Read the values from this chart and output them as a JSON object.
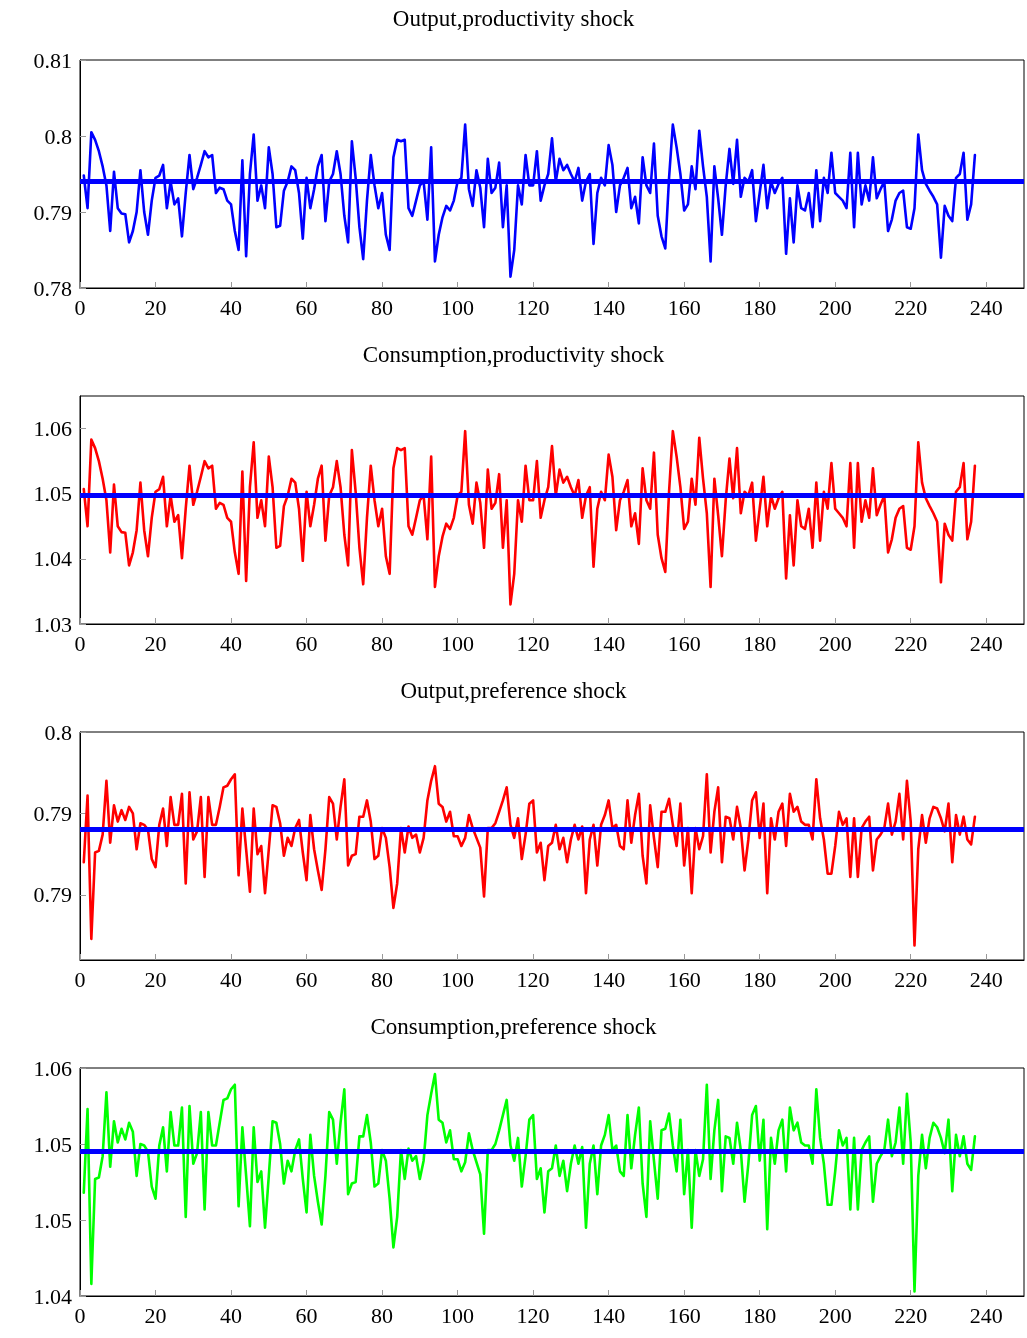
{
  "chart_data": [
    {
      "type": "line",
      "title": "Output,productivity shock",
      "marker": "none",
      "line_style": "solid",
      "x": [
        1,
        2,
        3,
        4,
        5,
        6,
        7,
        8,
        9,
        10,
        11,
        12,
        13,
        14,
        15,
        16,
        17,
        18,
        19,
        20,
        21,
        22,
        23,
        24,
        25,
        26,
        27,
        28,
        29,
        30,
        31,
        32,
        33,
        34,
        35,
        36,
        37,
        38,
        39,
        40,
        41,
        42,
        43,
        44,
        45,
        46,
        47,
        48,
        49,
        50,
        51,
        52,
        53,
        54,
        55,
        56,
        57,
        58,
        59,
        60,
        61,
        62,
        63,
        64,
        65,
        66,
        67,
        68,
        69,
        70,
        71,
        72,
        73,
        74,
        75,
        76,
        77,
        78,
        79,
        80,
        81,
        82,
        83,
        84,
        85,
        86,
        87,
        88,
        89,
        90,
        91,
        92,
        93,
        94,
        95,
        96,
        97,
        98,
        99,
        100,
        101,
        102,
        103,
        104,
        105,
        106,
        107,
        108,
        109,
        110,
        111,
        112,
        113,
        114,
        115,
        116,
        117,
        118,
        119,
        120,
        121,
        122,
        123,
        124,
        125,
        126,
        127,
        128,
        129,
        130,
        131,
        132,
        133,
        134,
        135,
        136,
        137,
        138,
        139,
        140,
        141,
        142,
        143,
        144,
        145,
        146,
        147,
        148,
        149,
        150,
        151,
        152,
        153,
        154,
        155,
        156,
        157,
        158,
        159,
        160,
        161,
        162,
        163,
        164,
        165,
        166,
        167,
        168,
        169,
        170,
        171,
        172,
        173,
        174,
        175,
        176,
        177,
        178,
        179,
        180,
        181,
        182,
        183,
        184,
        185,
        186,
        187,
        188,
        189,
        190,
        191,
        192,
        193,
        194,
        195,
        196,
        197,
        198,
        199,
        200,
        201,
        202,
        203,
        204,
        205,
        206,
        207,
        208,
        209,
        210,
        211,
        212,
        213,
        214,
        215,
        216,
        217,
        218,
        219,
        220,
        221,
        222,
        223,
        224,
        225,
        226,
        227,
        228,
        229,
        230,
        231,
        232,
        233,
        234,
        235,
        236,
        237
      ],
      "series": [
        {
          "color": "#0000ff",
          "values": [
            0.7948,
            0.7905,
            0.8005,
            0.7995,
            0.798,
            0.796,
            0.7935,
            0.7875,
            0.7953,
            0.7905,
            0.7898,
            0.7897,
            0.786,
            0.7875,
            0.79,
            0.7955,
            0.79,
            0.787,
            0.7915,
            0.7945,
            0.7948,
            0.7962,
            0.7905,
            0.794,
            0.791,
            0.7918,
            0.7868,
            0.7925,
            0.7975,
            0.793,
            0.7945,
            0.7962,
            0.798,
            0.7972,
            0.7975,
            0.7925,
            0.7932,
            0.793,
            0.7915,
            0.791,
            0.7875,
            0.785,
            0.7968,
            0.7842,
            0.795,
            0.8002,
            0.7915,
            0.7935,
            0.7905,
            0.7985,
            0.795,
            0.788,
            0.7882,
            0.7928,
            0.794,
            0.796,
            0.7955,
            0.7925,
            0.7865,
            0.7945,
            0.7905,
            0.793,
            0.796,
            0.7975,
            0.7888,
            0.794,
            0.795,
            0.798,
            0.795,
            0.7895,
            0.786,
            0.7993,
            0.7945,
            0.788,
            0.7838,
            0.7915,
            0.7975,
            0.7935,
            0.7905,
            0.7925,
            0.787,
            0.785,
            0.7972,
            0.7995,
            0.7993,
            0.7995,
            0.7905,
            0.7895,
            0.7915,
            0.7935,
            0.794,
            0.789,
            0.7985,
            0.7835,
            0.787,
            0.7893,
            0.7908,
            0.7902,
            0.7915,
            0.794,
            0.7945,
            0.8015,
            0.793,
            0.7908,
            0.7955,
            0.7932,
            0.788,
            0.797,
            0.7925,
            0.7932,
            0.7965,
            0.788,
            0.7935,
            0.7815,
            0.785,
            0.7935,
            0.791,
            0.7975,
            0.7935,
            0.7935,
            0.798,
            0.7915,
            0.7935,
            0.795,
            0.7997,
            0.794,
            0.797,
            0.7955,
            0.7962,
            0.795,
            0.794,
            0.7958,
            0.7915,
            0.794,
            0.795,
            0.7858,
            0.7925,
            0.7945,
            0.7935,
            0.7988,
            0.7962,
            0.79,
            0.7935,
            0.7945,
            0.7958,
            0.7905,
            0.792,
            0.7885,
            0.7972,
            0.7935,
            0.7925,
            0.799,
            0.7895,
            0.7868,
            0.7852,
            0.7945,
            0.8015,
            0.7985,
            0.795,
            0.7902,
            0.791,
            0.796,
            0.793,
            0.8007,
            0.796,
            0.792,
            0.7835,
            0.796,
            0.7918,
            0.787,
            0.7935,
            0.7983,
            0.7937,
            0.7995,
            0.792,
            0.7945,
            0.794,
            0.7955,
            0.7888,
            0.7925,
            0.7962,
            0.7905,
            0.794,
            0.7925,
            0.7937,
            0.7945,
            0.7845,
            0.7918,
            0.786,
            0.7935,
            0.7905,
            0.7902,
            0.7925,
            0.788,
            0.7955,
            0.7888,
            0.7945,
            0.7925,
            0.7978,
            0.7925,
            0.792,
            0.7915,
            0.7905,
            0.7978,
            0.788,
            0.7978,
            0.791,
            0.7935,
            0.7915,
            0.7972,
            0.7918,
            0.793,
            0.794,
            0.7875,
            0.789,
            0.7915,
            0.7925,
            0.7928,
            0.788,
            0.7878,
            0.7905,
            0.8002,
            0.7955,
            0.7937,
            0.7928,
            0.792,
            0.791,
            0.784,
            0.7908,
            0.7895,
            0.7888,
            0.7945,
            0.795,
            0.7978,
            0.789,
            0.791,
            0.7975
          ]
        }
      ],
      "ref_lines": [
        {
          "axis": "y",
          "value": 0.7941,
          "color": "#0000ff"
        }
      ],
      "xlim": [
        0,
        250
      ],
      "xticks": [
        0,
        20,
        40,
        60,
        80,
        100,
        120,
        140,
        160,
        180,
        200,
        220,
        240
      ],
      "ylim": [
        0.78,
        0.81
      ],
      "yticks": [
        0.78,
        0.79,
        0.8,
        0.81
      ]
    },
    {
      "type": "line",
      "title": "Consumption,productivity shock",
      "marker": "none",
      "line_style": "solid",
      "x": [
        1,
        2,
        3,
        4,
        5,
        6,
        7,
        8,
        9,
        10,
        11,
        12,
        13,
        14,
        15,
        16,
        17,
        18,
        19,
        20,
        21,
        22,
        23,
        24,
        25,
        26,
        27,
        28,
        29,
        30,
        31,
        32,
        33,
        34,
        35,
        36,
        37,
        38,
        39,
        40,
        41,
        42,
        43,
        44,
        45,
        46,
        47,
        48,
        49,
        50,
        51,
        52,
        53,
        54,
        55,
        56,
        57,
        58,
        59,
        60,
        61,
        62,
        63,
        64,
        65,
        66,
        67,
        68,
        69,
        70,
        71,
        72,
        73,
        74,
        75,
        76,
        77,
        78,
        79,
        80,
        81,
        82,
        83,
        84,
        85,
        86,
        87,
        88,
        89,
        90,
        91,
        92,
        93,
        94,
        95,
        96,
        97,
        98,
        99,
        100,
        101,
        102,
        103,
        104,
        105,
        106,
        107,
        108,
        109,
        110,
        111,
        112,
        113,
        114,
        115,
        116,
        117,
        118,
        119,
        120,
        121,
        122,
        123,
        124,
        125,
        126,
        127,
        128,
        129,
        130,
        131,
        132,
        133,
        134,
        135,
        136,
        137,
        138,
        139,
        140,
        141,
        142,
        143,
        144,
        145,
        146,
        147,
        148,
        149,
        150,
        151,
        152,
        153,
        154,
        155,
        156,
        157,
        158,
        159,
        160,
        161,
        162,
        163,
        164,
        165,
        166,
        167,
        168,
        169,
        170,
        171,
        172,
        173,
        174,
        175,
        176,
        177,
        178,
        179,
        180,
        181,
        182,
        183,
        184,
        185,
        186,
        187,
        188,
        189,
        190,
        191,
        192,
        193,
        194,
        195,
        196,
        197,
        198,
        199,
        200,
        201,
        202,
        203,
        204,
        205,
        206,
        207,
        208,
        209,
        210,
        211,
        212,
        213,
        214,
        215,
        216,
        217,
        218,
        219,
        220,
        221,
        222,
        223,
        224,
        225,
        226,
        227,
        228,
        229,
        230,
        231,
        232,
        233,
        234,
        235,
        236,
        237
      ],
      "series": [
        {
          "color": "#ff0000",
          "values": [
            1.0507,
            1.045,
            1.0583,
            1.057,
            1.055,
            1.0523,
            1.049,
            1.041,
            1.0514,
            1.045,
            1.0441,
            1.044,
            1.039,
            1.041,
            1.0444,
            1.0517,
            1.0444,
            1.0404,
            1.0463,
            1.0503,
            1.0507,
            1.0526,
            1.045,
            1.0497,
            1.0457,
            1.0467,
            1.0401,
            1.0477,
            1.0543,
            1.0483,
            1.0503,
            1.0526,
            1.055,
            1.0539,
            1.0543,
            1.0477,
            1.0486,
            1.0483,
            1.0463,
            1.0457,
            1.041,
            1.0377,
            1.0534,
            1.0366,
            1.051,
            1.0579,
            1.0463,
            1.049,
            1.045,
            1.0557,
            1.051,
            1.0417,
            1.042,
            1.0481,
            1.0497,
            1.0523,
            1.0517,
            1.0477,
            1.0397,
            1.0503,
            1.045,
            1.0483,
            1.0523,
            1.0543,
            1.0428,
            1.0497,
            1.051,
            1.055,
            1.051,
            1.0437,
            1.039,
            1.0567,
            1.0503,
            1.0417,
            1.0361,
            1.0463,
            1.0543,
            1.049,
            1.045,
            1.0477,
            1.0404,
            1.0377,
            1.0539,
            1.057,
            1.0567,
            1.057,
            1.045,
            1.0437,
            1.0463,
            1.049,
            1.0497,
            1.043,
            1.0557,
            1.0357,
            1.0404,
            1.0434,
            1.0454,
            1.0446,
            1.0463,
            1.0497,
            1.0503,
            1.0596,
            1.0483,
            1.0454,
            1.0517,
            1.0486,
            1.0417,
            1.0537,
            1.0477,
            1.0486,
            1.053,
            1.0417,
            1.049,
            1.033,
            1.0377,
            1.049,
            1.0457,
            1.0543,
            1.049,
            1.049,
            1.055,
            1.0463,
            1.049,
            1.051,
            1.0573,
            1.0497,
            1.0537,
            1.0517,
            1.0526,
            1.051,
            1.0497,
            1.0521,
            1.0463,
            1.0497,
            1.051,
            1.0388,
            1.0477,
            1.0503,
            1.049,
            1.056,
            1.0526,
            1.0444,
            1.049,
            1.0503,
            1.0521,
            1.045,
            1.047,
            1.0423,
            1.0539,
            1.049,
            1.0477,
            1.0563,
            1.0437,
            1.0401,
            1.038,
            1.0503,
            1.0596,
            1.0557,
            1.051,
            1.0446,
            1.0457,
            1.0523,
            1.0483,
            1.0586,
            1.0523,
            1.047,
            1.0357,
            1.0523,
            1.0467,
            1.0404,
            1.049,
            1.0554,
            1.0493,
            1.057,
            1.047,
            1.0503,
            1.0497,
            1.0517,
            1.0428,
            1.0477,
            1.0526,
            1.045,
            1.0497,
            1.0477,
            1.0493,
            1.0503,
            1.037,
            1.0467,
            1.039,
            1.049,
            1.045,
            1.0446,
            1.0477,
            1.0417,
            1.0517,
            1.0428,
            1.0503,
            1.0477,
            1.0547,
            1.0477,
            1.047,
            1.0463,
            1.045,
            1.0547,
            1.0417,
            1.0547,
            1.0457,
            1.049,
            1.0463,
            1.0539,
            1.0467,
            1.0483,
            1.0497,
            1.041,
            1.043,
            1.0463,
            1.0477,
            1.0481,
            1.0417,
            1.0414,
            1.045,
            1.0579,
            1.0517,
            1.0493,
            1.0481,
            1.047,
            1.0457,
            1.0364,
            1.0454,
            1.0437,
            1.0428,
            1.0503,
            1.051,
            1.0547,
            1.043,
            1.0457,
            1.0543
          ]
        }
      ],
      "ref_lines": [
        {
          "axis": "y",
          "value": 1.0498,
          "color": "#0000ff"
        }
      ],
      "xlim": [
        0,
        250
      ],
      "xticks": [
        0,
        20,
        40,
        60,
        80,
        100,
        120,
        140,
        160,
        180,
        200,
        220,
        240
      ],
      "ylim": [
        1.03,
        1.065
      ],
      "yticks": [
        1.03,
        1.04,
        1.05,
        1.06
      ]
    },
    {
      "type": "line",
      "title": "Output,preference shock",
      "marker": "none",
      "line_style": "solid",
      "x": [
        1,
        2,
        3,
        4,
        5,
        6,
        7,
        8,
        9,
        10,
        11,
        12,
        13,
        14,
        15,
        16,
        17,
        18,
        19,
        20,
        21,
        22,
        23,
        24,
        25,
        26,
        27,
        28,
        29,
        30,
        31,
        32,
        33,
        34,
        35,
        36,
        37,
        38,
        39,
        40,
        41,
        42,
        43,
        44,
        45,
        46,
        47,
        48,
        49,
        50,
        51,
        52,
        53,
        54,
        55,
        56,
        57,
        58,
        59,
        60,
        61,
        62,
        63,
        64,
        65,
        66,
        67,
        68,
        69,
        70,
        71,
        72,
        73,
        74,
        75,
        76,
        77,
        78,
        79,
        80,
        81,
        82,
        83,
        84,
        85,
        86,
        87,
        88,
        89,
        90,
        91,
        92,
        93,
        94,
        95,
        96,
        97,
        98,
        99,
        100,
        101,
        102,
        103,
        104,
        105,
        106,
        107,
        108,
        109,
        110,
        111,
        112,
        113,
        114,
        115,
        116,
        117,
        118,
        119,
        120,
        121,
        122,
        123,
        124,
        125,
        126,
        127,
        128,
        129,
        130,
        131,
        132,
        133,
        134,
        135,
        136,
        137,
        138,
        139,
        140,
        141,
        142,
        143,
        144,
        145,
        146,
        147,
        148,
        149,
        150,
        151,
        152,
        153,
        154,
        155,
        156,
        157,
        158,
        159,
        160,
        161,
        162,
        163,
        164,
        165,
        166,
        167,
        168,
        169,
        170,
        171,
        172,
        173,
        174,
        175,
        176,
        177,
        178,
        179,
        180,
        181,
        182,
        183,
        184,
        185,
        186,
        187,
        188,
        189,
        190,
        191,
        192,
        193,
        194,
        195,
        196,
        197,
        198,
        199,
        200,
        201,
        202,
        203,
        204,
        205,
        206,
        207,
        208,
        209,
        210,
        211,
        212,
        213,
        214,
        215,
        216,
        217,
        218,
        219,
        220,
        221,
        222,
        223,
        224,
        225,
        226,
        227,
        228,
        229,
        230,
        231,
        232,
        233,
        234,
        235,
        236,
        237
      ],
      "series": [
        {
          "color": "#ff0000",
          "values": [
            0.792,
            0.7961,
            0.7873,
            0.7926,
            0.7927,
            0.7937,
            0.797,
            0.7932,
            0.7955,
            0.7945,
            0.7952,
            0.7946,
            0.7954,
            0.795,
            0.7928,
            0.7944,
            0.7943,
            0.794,
            0.7922,
            0.7917,
            0.7943,
            0.7953,
            0.793,
            0.796,
            0.7943,
            0.7943,
            0.7962,
            0.7907,
            0.7963,
            0.7934,
            0.7939,
            0.796,
            0.7911,
            0.796,
            0.7943,
            0.7943,
            0.7954,
            0.7966,
            0.7967,
            0.7971,
            0.7974,
            0.7912,
            0.7953,
            0.7928,
            0.7902,
            0.7953,
            0.7925,
            0.793,
            0.7901,
            0.7928,
            0.7955,
            0.7954,
            0.7944,
            0.7924,
            0.7935,
            0.793,
            0.7941,
            0.7946,
            0.7926,
            0.7909,
            0.7949,
            0.7928,
            0.7915,
            0.7903,
            0.7928,
            0.796,
            0.7956,
            0.7934,
            0.7954,
            0.7971,
            0.7918,
            0.7924,
            0.7925,
            0.7948,
            0.7948,
            0.7958,
            0.7945,
            0.7922,
            0.7924,
            0.7941,
            0.7935,
            0.7917,
            0.7892,
            0.7907,
            0.7941,
            0.7926,
            0.7942,
            0.7935,
            0.7937,
            0.7926,
            0.7935,
            0.7958,
            0.797,
            0.7979,
            0.7956,
            0.7954,
            0.7945,
            0.7951,
            0.7936,
            0.7936,
            0.793,
            0.7935,
            0.7949,
            0.7941,
            0.7935,
            0.7929,
            0.7899,
            0.7941,
            0.7941,
            0.7944,
            0.7951,
            0.7958,
            0.7966,
            0.7943,
            0.7935,
            0.7947,
            0.7922,
            0.7937,
            0.7956,
            0.7958,
            0.7926,
            0.7932,
            0.7909,
            0.793,
            0.7932,
            0.7943,
            0.7928,
            0.7935,
            0.792,
            0.7934,
            0.7943,
            0.7934,
            0.7942,
            0.7901,
            0.7934,
            0.7943,
            0.7918,
            0.7943,
            0.7949,
            0.7958,
            0.7941,
            0.7943,
            0.793,
            0.7928,
            0.7958,
            0.7932,
            0.7949,
            0.7962,
            0.7924,
            0.7907,
            0.7955,
            0.7935,
            0.7917,
            0.7951,
            0.7951,
            0.7959,
            0.7943,
            0.793,
            0.7956,
            0.7918,
            0.7941,
            0.7901,
            0.7941,
            0.7928,
            0.7936,
            0.7974,
            0.7926,
            0.7951,
            0.7966,
            0.792,
            0.7948,
            0.7947,
            0.7934,
            0.7954,
            0.7941,
            0.7915,
            0.7934,
            0.7958,
            0.7963,
            0.7935,
            0.7956,
            0.7901,
            0.7947,
            0.7934,
            0.7951,
            0.7956,
            0.793,
            0.7962,
            0.7951,
            0.7954,
            0.7945,
            0.7943,
            0.7943,
            0.7934,
            0.7971,
            0.7947,
            0.7934,
            0.7913,
            0.7913,
            0.793,
            0.7951,
            0.7943,
            0.7947,
            0.7911,
            0.7947,
            0.7911,
            0.7941,
            0.7945,
            0.7948,
            0.7915,
            0.7934,
            0.7937,
            0.7941,
            0.7956,
            0.7937,
            0.7945,
            0.7962,
            0.7934,
            0.797,
            0.7945,
            0.7869,
            0.7928,
            0.7949,
            0.7932,
            0.7947,
            0.7954,
            0.7953,
            0.7947,
            0.7939,
            0.7956,
            0.792,
            0.7949,
            0.7937,
            0.7948,
            0.7934,
            0.7931,
            0.7948
          ]
        }
      ],
      "ref_lines": [
        {
          "axis": "y",
          "value": 0.794,
          "color": "#0000ff"
        }
      ],
      "xlim": [
        0,
        250
      ],
      "xticks": [
        0,
        20,
        40,
        60,
        80,
        100,
        120,
        140,
        160,
        180,
        200,
        220,
        240
      ],
      "ylim": [
        0.786,
        0.8
      ],
      "yticks": [
        {
          "value": 0.79,
          "label": "0.79"
        },
        {
          "value": 0.795,
          "label": "0.79"
        },
        {
          "value": 0.8,
          "label": "0.8"
        }
      ]
    },
    {
      "type": "line",
      "title": "Consumption,preference shock",
      "marker": "none",
      "line_style": "solid",
      "x": [
        1,
        2,
        3,
        4,
        5,
        6,
        7,
        8,
        9,
        10,
        11,
        12,
        13,
        14,
        15,
        16,
        17,
        18,
        19,
        20,
        21,
        22,
        23,
        24,
        25,
        26,
        27,
        28,
        29,
        30,
        31,
        32,
        33,
        34,
        35,
        36,
        37,
        38,
        39,
        40,
        41,
        42,
        43,
        44,
        45,
        46,
        47,
        48,
        49,
        50,
        51,
        52,
        53,
        54,
        55,
        56,
        57,
        58,
        59,
        60,
        61,
        62,
        63,
        64,
        65,
        66,
        67,
        68,
        69,
        70,
        71,
        72,
        73,
        74,
        75,
        76,
        77,
        78,
        79,
        80,
        81,
        82,
        83,
        84,
        85,
        86,
        87,
        88,
        89,
        90,
        91,
        92,
        93,
        94,
        95,
        96,
        97,
        98,
        99,
        100,
        101,
        102,
        103,
        104,
        105,
        106,
        107,
        108,
        109,
        110,
        111,
        112,
        113,
        114,
        115,
        116,
        117,
        118,
        119,
        120,
        121,
        122,
        123,
        124,
        125,
        126,
        127,
        128,
        129,
        130,
        131,
        132,
        133,
        134,
        135,
        136,
        137,
        138,
        139,
        140,
        141,
        142,
        143,
        144,
        145,
        146,
        147,
        148,
        149,
        150,
        151,
        152,
        153,
        154,
        155,
        156,
        157,
        158,
        159,
        160,
        161,
        162,
        163,
        164,
        165,
        166,
        167,
        168,
        169,
        170,
        171,
        172,
        173,
        174,
        175,
        176,
        177,
        178,
        179,
        180,
        181,
        182,
        183,
        184,
        185,
        186,
        187,
        188,
        189,
        190,
        191,
        192,
        193,
        194,
        195,
        196,
        197,
        198,
        199,
        200,
        201,
        202,
        203,
        204,
        205,
        206,
        207,
        208,
        209,
        210,
        211,
        212,
        213,
        214,
        215,
        216,
        217,
        218,
        219,
        220,
        221,
        222,
        223,
        224,
        225,
        226,
        227,
        228,
        229,
        230,
        231,
        232,
        233,
        234,
        235,
        236,
        237
      ],
      "series": [
        {
          "color": "#00ff00",
          "values": [
            1.0518,
            1.0573,
            1.0458,
            1.0527,
            1.0528,
            1.0542,
            1.0584,
            1.0535,
            1.0565,
            1.0551,
            1.056,
            1.0553,
            1.0564,
            1.0558,
            1.0529,
            1.055,
            1.0549,
            1.0545,
            1.0522,
            1.0514,
            1.0549,
            1.0561,
            1.0532,
            1.0571,
            1.0549,
            1.0549,
            1.0574,
            1.0502,
            1.0575,
            1.0537,
            1.0544,
            1.0571,
            1.0507,
            1.0571,
            1.0549,
            1.0549,
            1.0564,
            1.0579,
            1.058,
            1.0586,
            1.0589,
            1.0509,
            1.0561,
            1.0529,
            1.0496,
            1.0561,
            1.0525,
            1.0532,
            1.0495,
            1.0529,
            1.0565,
            1.0564,
            1.055,
            1.0524,
            1.0539,
            1.0532,
            1.0546,
            1.0553,
            1.0527,
            1.0505,
            1.0556,
            1.0529,
            1.0512,
            1.0497,
            1.0529,
            1.0571,
            1.0566,
            1.0537,
            1.0564,
            1.0586,
            1.0517,
            1.0524,
            1.0525,
            1.0555,
            1.0555,
            1.0569,
            1.0551,
            1.0522,
            1.0524,
            1.0546,
            1.0539,
            1.0514,
            1.0482,
            1.0502,
            1.0546,
            1.0527,
            1.0547,
            1.0539,
            1.0542,
            1.0527,
            1.0539,
            1.0569,
            1.0583,
            1.0596,
            1.0566,
            1.0564,
            1.0551,
            1.0559,
            1.054,
            1.054,
            1.0532,
            1.0538,
            1.0557,
            1.0546,
            1.0538,
            1.053,
            1.0491,
            1.0546,
            1.0546,
            1.055,
            1.0559,
            1.0569,
            1.0579,
            1.0549,
            1.0539,
            1.0554,
            1.0522,
            1.0542,
            1.0566,
            1.0569,
            1.0527,
            1.0534,
            1.0505,
            1.0532,
            1.0534,
            1.0549,
            1.0529,
            1.0539,
            1.0519,
            1.0537,
            1.0549,
            1.0537,
            1.0548,
            1.0495,
            1.0537,
            1.0549,
            1.0517,
            1.0549,
            1.0556,
            1.0569,
            1.0546,
            1.0549,
            1.0532,
            1.0529,
            1.0569,
            1.0534,
            1.0556,
            1.0574,
            1.0524,
            1.0502,
            1.0565,
            1.0539,
            1.0514,
            1.0559,
            1.056,
            1.057,
            1.0549,
            1.0532,
            1.0566,
            1.0517,
            1.0546,
            1.0495,
            1.0546,
            1.0529,
            1.054,
            1.0589,
            1.0527,
            1.0559,
            1.0579,
            1.0519,
            1.0555,
            1.0554,
            1.0537,
            1.0564,
            1.0546,
            1.0512,
            1.0537,
            1.0569,
            1.0575,
            1.0539,
            1.0566,
            1.0494,
            1.0554,
            1.0537,
            1.0559,
            1.0566,
            1.0532,
            1.0574,
            1.0559,
            1.0564,
            1.0551,
            1.0549,
            1.0549,
            1.0537,
            1.0586,
            1.0554,
            1.0537,
            1.051,
            1.051,
            1.0532,
            1.0559,
            1.0549,
            1.0554,
            1.0507,
            1.0554,
            1.0507,
            1.0546,
            1.0551,
            1.0555,
            1.0512,
            1.0537,
            1.0542,
            1.0546,
            1.0566,
            1.0542,
            1.0551,
            1.0574,
            1.0537,
            1.0583,
            1.0551,
            1.0453,
            1.0529,
            1.0556,
            1.0534,
            1.0554,
            1.0564,
            1.0561,
            1.0554,
            1.0544,
            1.0566,
            1.0519,
            1.0556,
            1.0542,
            1.0555,
            1.0537,
            1.0533,
            1.0555
          ]
        }
      ],
      "ref_lines": [
        {
          "axis": "y",
          "value": 1.0545,
          "color": "#0000ff"
        }
      ],
      "xlim": [
        0,
        250
      ],
      "xticks": [
        0,
        20,
        40,
        60,
        80,
        100,
        120,
        140,
        160,
        180,
        200,
        220,
        240
      ],
      "ylim": [
        1.045,
        1.06
      ],
      "yticks": [
        {
          "value": 1.045,
          "label": "1.04"
        },
        {
          "value": 1.05,
          "label": "1.05"
        },
        {
          "value": 1.055,
          "label": "1.05"
        },
        {
          "value": 1.06,
          "label": "1.06"
        }
      ]
    }
  ]
}
